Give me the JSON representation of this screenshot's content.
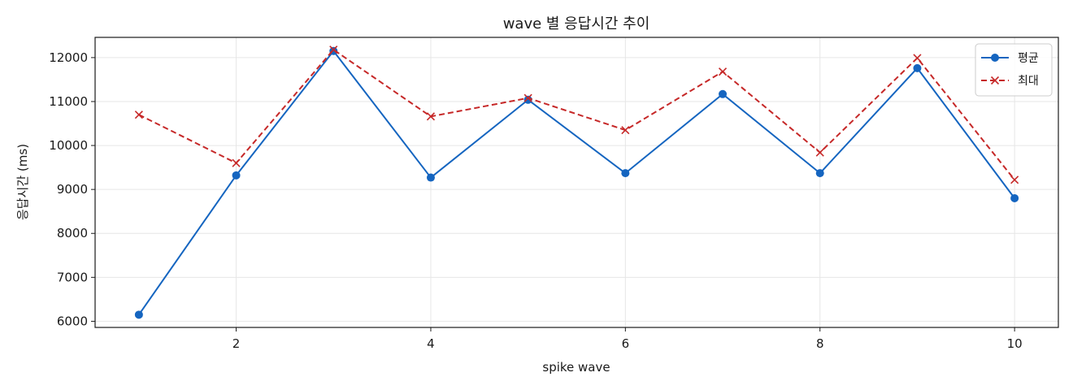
{
  "chart_data": {
    "type": "line",
    "title": "wave 별 응답시간 추이",
    "xlabel": "spike wave",
    "ylabel": "응답시간 (ms)",
    "x": [
      1,
      2,
      3,
      4,
      5,
      6,
      7,
      8,
      9,
      10
    ],
    "xlim": [
      0.55,
      10.45
    ],
    "ylim": [
      5860,
      12460
    ],
    "xticks": [
      2,
      4,
      6,
      8,
      10
    ],
    "yticks": [
      6000,
      7000,
      8000,
      9000,
      10000,
      11000,
      12000
    ],
    "grid": true,
    "legend_position": "top-right",
    "series": [
      {
        "name": "평균",
        "color": "#1565c0",
        "marker": "circle",
        "linestyle": "solid",
        "values": [
          6150,
          9320,
          12150,
          9270,
          11040,
          9370,
          11170,
          9370,
          11760,
          8800
        ]
      },
      {
        "name": "최대",
        "color": "#c62828",
        "marker": "x",
        "linestyle": "dashed",
        "values": [
          10700,
          9600,
          12180,
          10660,
          11080,
          10350,
          11680,
          9840,
          11990,
          9220
        ]
      }
    ]
  }
}
